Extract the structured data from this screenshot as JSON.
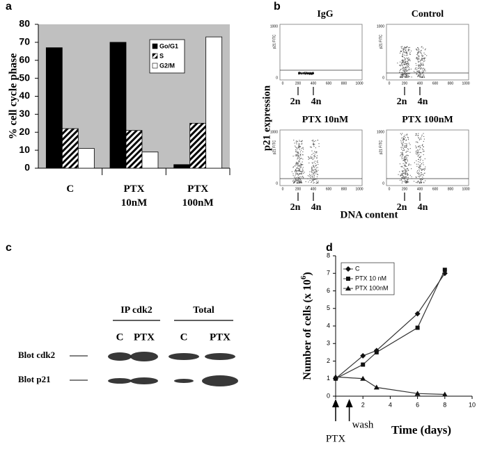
{
  "chart_data": [
    {
      "type": "bar",
      "label": "a",
      "y_label": "% cell cycle phase",
      "categories": [
        "C",
        "PTX 10nM",
        "PTX 100nM"
      ],
      "series": [
        {
          "name": "Go/G1",
          "color": "#000000",
          "values": [
            67,
            70,
            2
          ]
        },
        {
          "name": "S",
          "color": "#000000",
          "pattern": "hatch",
          "values": [
            22,
            21,
            25
          ]
        },
        {
          "name": "G2/M",
          "color": "#ffffff",
          "values": [
            11,
            9,
            73
          ]
        }
      ],
      "ylim": [
        0,
        80
      ],
      "yticks": [
        0,
        10,
        20,
        30,
        40,
        50,
        60,
        70,
        80
      ],
      "background": "#c0c0c0",
      "legend": "top-right"
    },
    {
      "type": "line",
      "label": "d",
      "x_label": "Time (days)",
      "y_label": "Number of cells (x 10",
      "y_label_exponent": "6",
      "y_label_end": ")",
      "x": [
        0,
        2,
        3,
        6,
        8
      ],
      "series": [
        {
          "name": "C",
          "color": "#333333",
          "marker": "diamond",
          "values": [
            1.0,
            2.3,
            2.6,
            4.7,
            7.0
          ]
        },
        {
          "name": "PTX 10 nM",
          "color": "#333333",
          "marker": "square",
          "values": [
            1.0,
            1.8,
            2.5,
            3.9,
            7.2
          ]
        },
        {
          "name": "PTX 100nM",
          "color": "#333333",
          "marker": "triangle",
          "values": [
            1.1,
            1.0,
            0.5,
            0.15,
            0.1
          ]
        }
      ],
      "xlim": [
        0,
        10
      ],
      "xticks": [
        0,
        2,
        4,
        6,
        8,
        10
      ],
      "ylim": [
        0,
        8
      ],
      "yticks": [
        0,
        1,
        2,
        3,
        4,
        5,
        6,
        7,
        8
      ],
      "legend": "top-left",
      "annotations": [
        {
          "text": "PTX",
          "x": 0
        },
        {
          "text": "wash",
          "x": 1
        }
      ]
    }
  ],
  "panel_b": {
    "label": "b",
    "y_label": "p21 expression",
    "x_label": "DNA content",
    "plots": [
      {
        "title": "IgG"
      },
      {
        "title": "Control"
      },
      {
        "title": "PTX 10nM"
      },
      {
        "title": "PTX 100nM"
      }
    ],
    "axis_name": "p21 FITC",
    "y_tick_top": "1000",
    "y_tick_bottom": "0",
    "x_ticks": [
      "0",
      "200",
      "400",
      "600",
      "800",
      "1000"
    ],
    "markers": [
      "2n",
      "4n"
    ]
  },
  "panel_c": {
    "label": "c",
    "groups": [
      "IP cdk2",
      "Total"
    ],
    "lanes": [
      "C",
      "PTX",
      "C",
      "PTX"
    ],
    "rows": [
      "Blot cdk2",
      "Blot p21"
    ]
  }
}
